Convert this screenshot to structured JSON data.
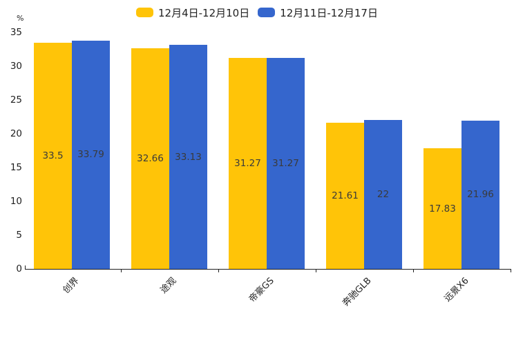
{
  "chart_data": {
    "type": "bar",
    "categories": [
      "创界",
      "途观",
      "帝豪GS",
      "奔驰GLB",
      "远景X6"
    ],
    "series": [
      {
        "name": "12月4日-12月10日",
        "color": "#FFC408",
        "values": [
          33.5,
          32.66,
          31.27,
          21.61,
          17.83
        ]
      },
      {
        "name": "12月11日-12月17日",
        "color": "#3566CD",
        "values": [
          33.79,
          33.13,
          31.27,
          22,
          21.96
        ]
      }
    ],
    "title": "",
    "xlabel": "",
    "ylabel": "%",
    "ylim": [
      0,
      35
    ],
    "yticks": [
      0,
      5,
      10,
      15,
      20,
      25,
      30,
      35
    ],
    "grid": false,
    "legend_position": "top",
    "value_label_position": "inside-center",
    "xtick_rotation": 45,
    "text_color": "#1f1f1f",
    "value_label_color": "#3a3a3a"
  }
}
